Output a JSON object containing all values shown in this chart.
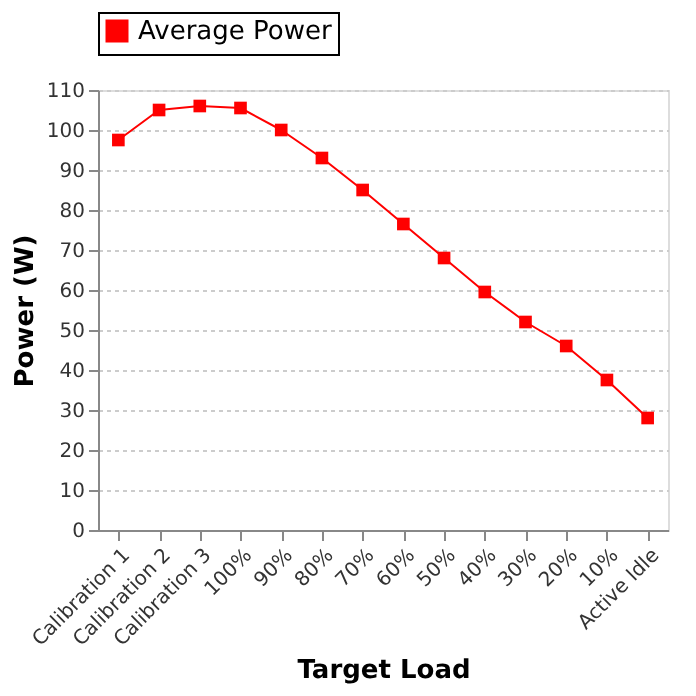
{
  "chart_data": {
    "type": "line",
    "xlabel": "Target Load",
    "ylabel": "Power (W)",
    "categories": [
      "Calibration 1",
      "Calibration 2",
      "Calibration 3",
      "100%",
      "90%",
      "80%",
      "70%",
      "60%",
      "50%",
      "40%",
      "30%",
      "20%",
      "10%",
      "Active Idle"
    ],
    "series": [
      {
        "name": "Average Power",
        "color": "#ff0000",
        "values": [
          97.5,
          105,
          106,
          105.5,
          100,
          93,
          85,
          76.5,
          68,
          59.5,
          52,
          46,
          37.5,
          28
        ]
      }
    ],
    "ylim": [
      0,
      110
    ],
    "yticks": [
      0,
      10,
      20,
      30,
      40,
      50,
      60,
      70,
      80,
      90,
      100,
      110
    ],
    "grid": "y",
    "legend": "top",
    "marker": "square",
    "line_style": "solid"
  }
}
